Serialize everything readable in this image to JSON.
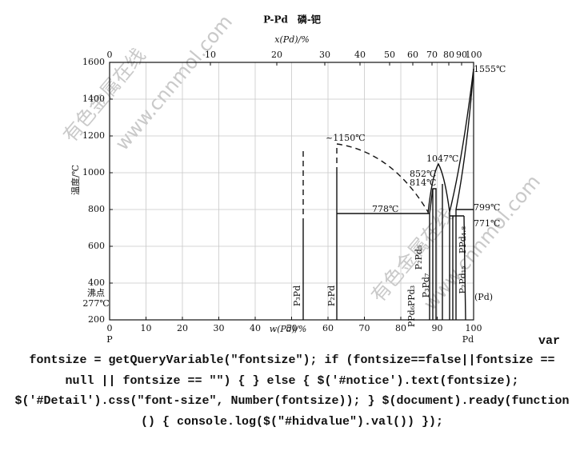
{
  "title": "P-Pd　磷-钯",
  "top_axis": {
    "label": "x(Pd)/%",
    "ticks": [
      0,
      10,
      20,
      30,
      40,
      50,
      60,
      70,
      80,
      90,
      100
    ]
  },
  "bottom_axis": {
    "label": "w(Pd)/%",
    "ticks": [
      0,
      10,
      20,
      30,
      40,
      50,
      60,
      70,
      80,
      90,
      100
    ],
    "left_end": "P",
    "right_end": "Pd"
  },
  "left_axis": {
    "label": "温度/℃",
    "ticks": [
      1600,
      1400,
      1200,
      1000,
      800,
      600,
      400,
      200
    ]
  },
  "boiling_point": {
    "label": "沸点",
    "value": "277℃"
  },
  "annotations": {
    "t1150": "~1150℃",
    "t778": "778℃",
    "t1047": "1047℃",
    "t852": "852℃",
    "t814": "814℃",
    "t1555": "1555℃",
    "t799": "799℃",
    "t771": "771℃"
  },
  "phases": {
    "p3pd": "P₃Pd",
    "p2pd": "P₂Pd",
    "p2pd5": "P₂Pd₅",
    "p3pd7": "P₃Pd₇",
    "ppd3": "PPd₃",
    "ppd6": "PPd₆",
    "ppd48": "PPd₄.₈",
    "p2pd15": "P₂Pd₁₅",
    "pd": "(Pd)"
  },
  "watermarks": [
    "有色金属在线",
    "www.cnnmol.com",
    "有色金属在线",
    "www.cnnmol.com"
  ],
  "code": [
    "var",
    "fontsize = getQueryVariable(\"fontsize\"); if (fontsize==false||fontsize ==",
    "null || fontsize == \"\") { } else { $('#notice').text(fontsize);",
    "$('#Detail').css(\"font-size\", Number(fontsize)); } $(document).ready(function",
    "() { console.log($(\"#hidvalue\").val()) });"
  ]
}
